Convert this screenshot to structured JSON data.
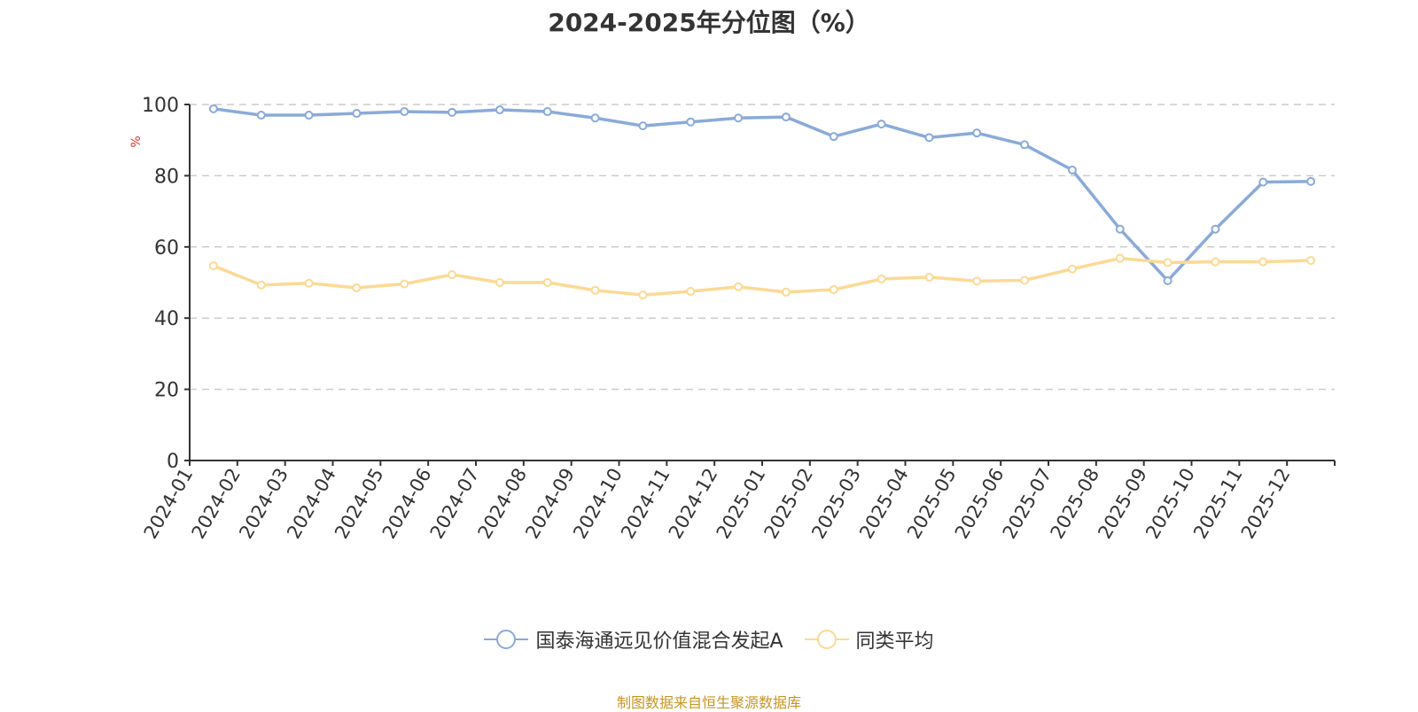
{
  "title": "2024-2025年分位图（%）",
  "y_unit_label": "%",
  "legend": [
    {
      "label": "国泰海通远见价值混合发起A",
      "color": "#8aaad9"
    },
    {
      "label": "同类平均",
      "color": "#fcd994"
    }
  ],
  "footer": "制图数据来自恒生聚源数据库",
  "chart_data": {
    "type": "line",
    "title": "2024-2025年分位图（%）",
    "xlabel": "",
    "ylabel": "%",
    "ylim": [
      0,
      100
    ],
    "yticks": [
      0,
      20,
      40,
      60,
      80,
      100
    ],
    "grid": true,
    "legend_position": "bottom",
    "categories": [
      "2024-01",
      "2024-02",
      "2024-03",
      "2024-04",
      "2024-05",
      "2024-06",
      "2024-07",
      "2024-08",
      "2024-09",
      "2024-10",
      "2024-11",
      "2024-12",
      "2025-01",
      "2025-02",
      "2025-03",
      "2025-04",
      "2025-05",
      "2025-06",
      "2025-07",
      "2025-08",
      "2025-09",
      "2025-10",
      "2025-11",
      "2025-12"
    ],
    "series": [
      {
        "name": "国泰海通远见价值混合发起A",
        "color": "#8aaad9",
        "values": [
          98.8,
          97.0,
          97.0,
          97.5,
          98.0,
          97.8,
          98.5,
          98.0,
          96.2,
          94.0,
          95.1,
          96.2,
          96.5,
          91.0,
          94.5,
          90.7,
          92.0,
          88.7,
          81.6,
          65.0,
          50.5,
          65.0,
          78.2,
          78.4
        ]
      },
      {
        "name": "同类平均",
        "color": "#fcd994",
        "values": [
          54.7,
          49.3,
          49.8,
          48.5,
          49.6,
          52.2,
          50.0,
          50.0,
          47.8,
          46.5,
          47.5,
          48.8,
          47.3,
          48.0,
          51.0,
          51.5,
          50.4,
          50.6,
          53.8,
          56.8,
          55.6,
          55.8,
          55.8,
          56.2
        ]
      }
    ]
  }
}
